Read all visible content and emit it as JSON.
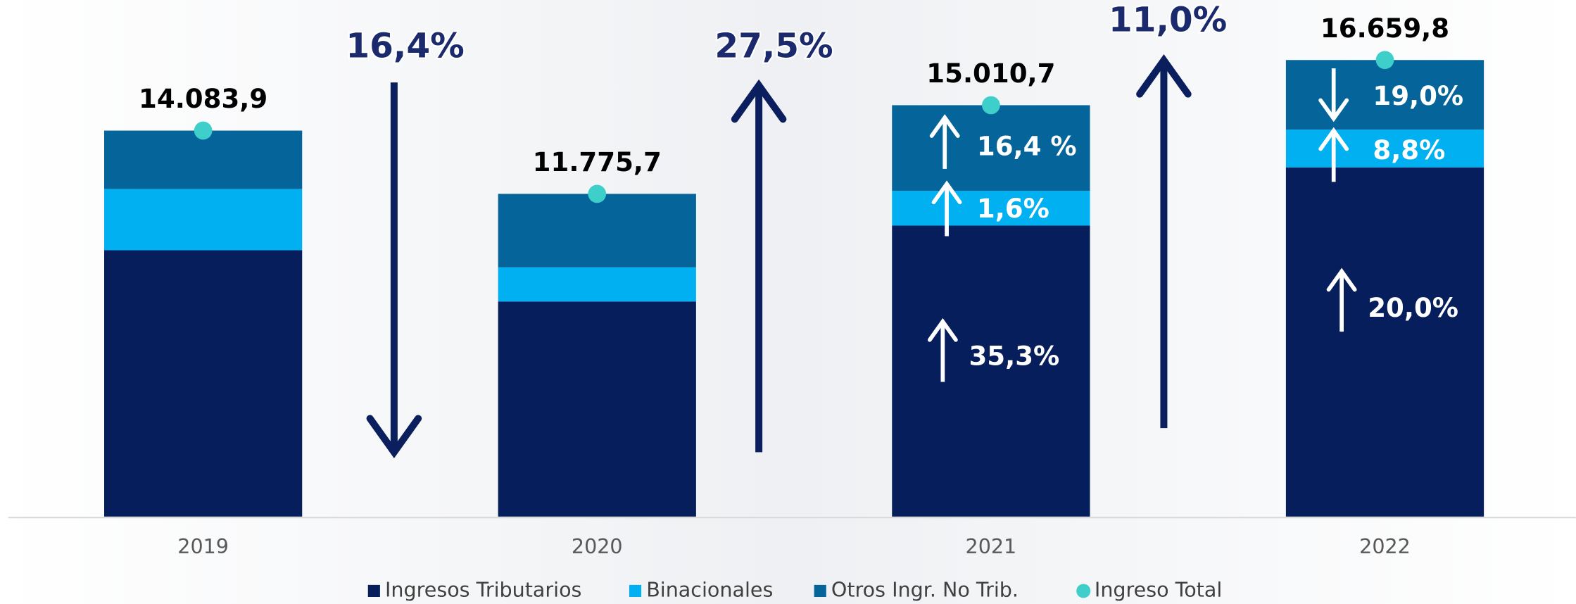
{
  "chart_data": {
    "type": "bar",
    "stacked": true,
    "categories": [
      "2019",
      "2020",
      "2021",
      "2022"
    ],
    "series": [
      {
        "name": "Ingresos Tributarios",
        "color": "#061e5c",
        "values": [
          9718,
          7848,
          10618,
          12742
        ]
      },
      {
        "name": "Binacionales",
        "color": "#00b0f0",
        "values": [
          2237,
          1247,
          1267,
          1379
        ]
      },
      {
        "name": "Otros Ingr. No Trib.",
        "color": "#05659a",
        "values": [
          2129,
          2681,
          3126,
          2539
        ]
      },
      {
        "name": "Ingreso Total",
        "color": "#3ecfcb",
        "type": "point",
        "values": [
          14083.9,
          11775.7,
          15010.7,
          16659.8
        ],
        "value_labels": [
          "14.083,9",
          "11.775,7",
          "15.010,7",
          "16.659,8"
        ]
      }
    ],
    "ylim": [
      0,
      18850
    ],
    "annotations": [
      "16,4%",
      "27,5%",
      "11,0%",
      "16,4 %",
      "1,6%",
      "35,3%",
      "19,0%",
      "8,8%",
      "20,0%"
    ]
  }
}
